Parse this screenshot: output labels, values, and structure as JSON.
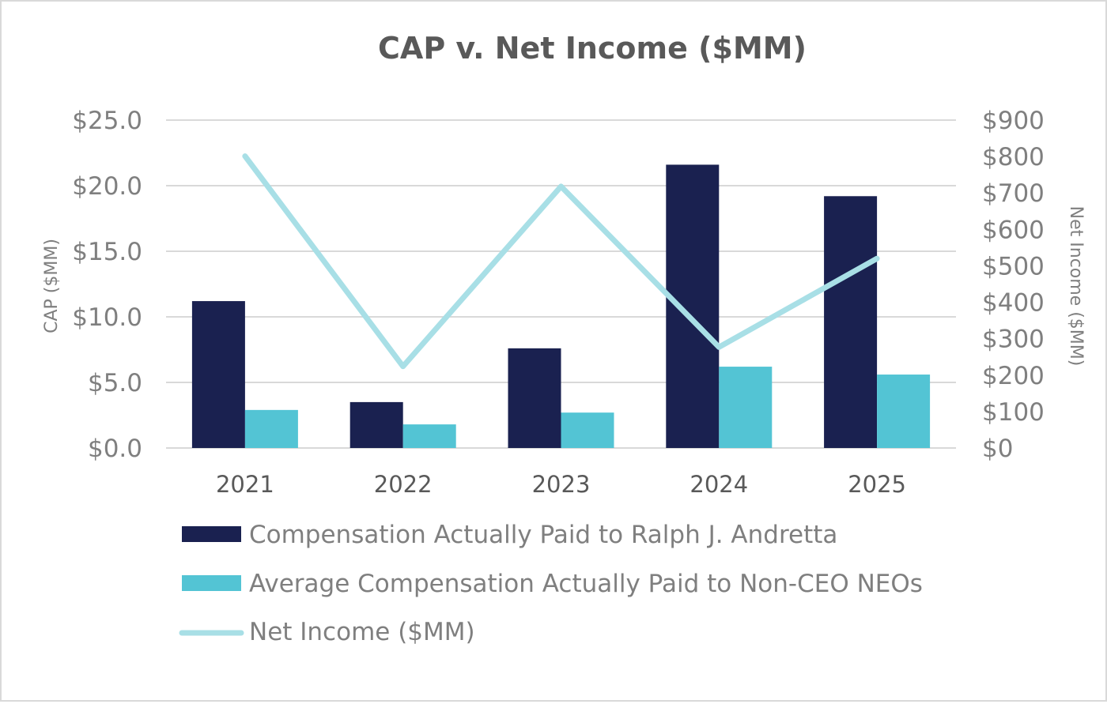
{
  "chart_data": {
    "type": "bar",
    "title": "CAP v. Net Income ($MM)",
    "categories": [
      "2021",
      "2022",
      "2023",
      "2024",
      "2025"
    ],
    "ylabel": "CAP ($MM)",
    "y2label": "Net Income ($MM)",
    "ylim": [
      0,
      25
    ],
    "y2lim": [
      0,
      900
    ],
    "yticks": [
      "$0.0",
      "$5.0",
      "$10.0",
      "$15.0",
      "$20.0",
      "$25.0"
    ],
    "y2ticks": [
      "$0",
      "$100",
      "$200",
      "$300",
      "$400",
      "$500",
      "$600",
      "$700",
      "$800",
      "$900"
    ],
    "grid": true,
    "legend_position": "bottom",
    "series": [
      {
        "name": "Compensation Actually Paid to Ralph J. Andretta",
        "kind": "bar",
        "axis": "left",
        "color": "#1a2150",
        "values": [
          11.2,
          3.5,
          7.6,
          21.6,
          19.2
        ]
      },
      {
        "name": "Average Compensation Actually Paid to Non-CEO NEOs",
        "kind": "bar",
        "axis": "left",
        "color": "#53c4d4",
        "values": [
          2.9,
          1.8,
          2.7,
          6.2,
          5.6
        ]
      },
      {
        "name": "Net Income ($MM)",
        "kind": "line",
        "axis": "right",
        "color": "#a8dfe6",
        "values": [
          801,
          224,
          718,
          277,
          520
        ]
      }
    ]
  }
}
